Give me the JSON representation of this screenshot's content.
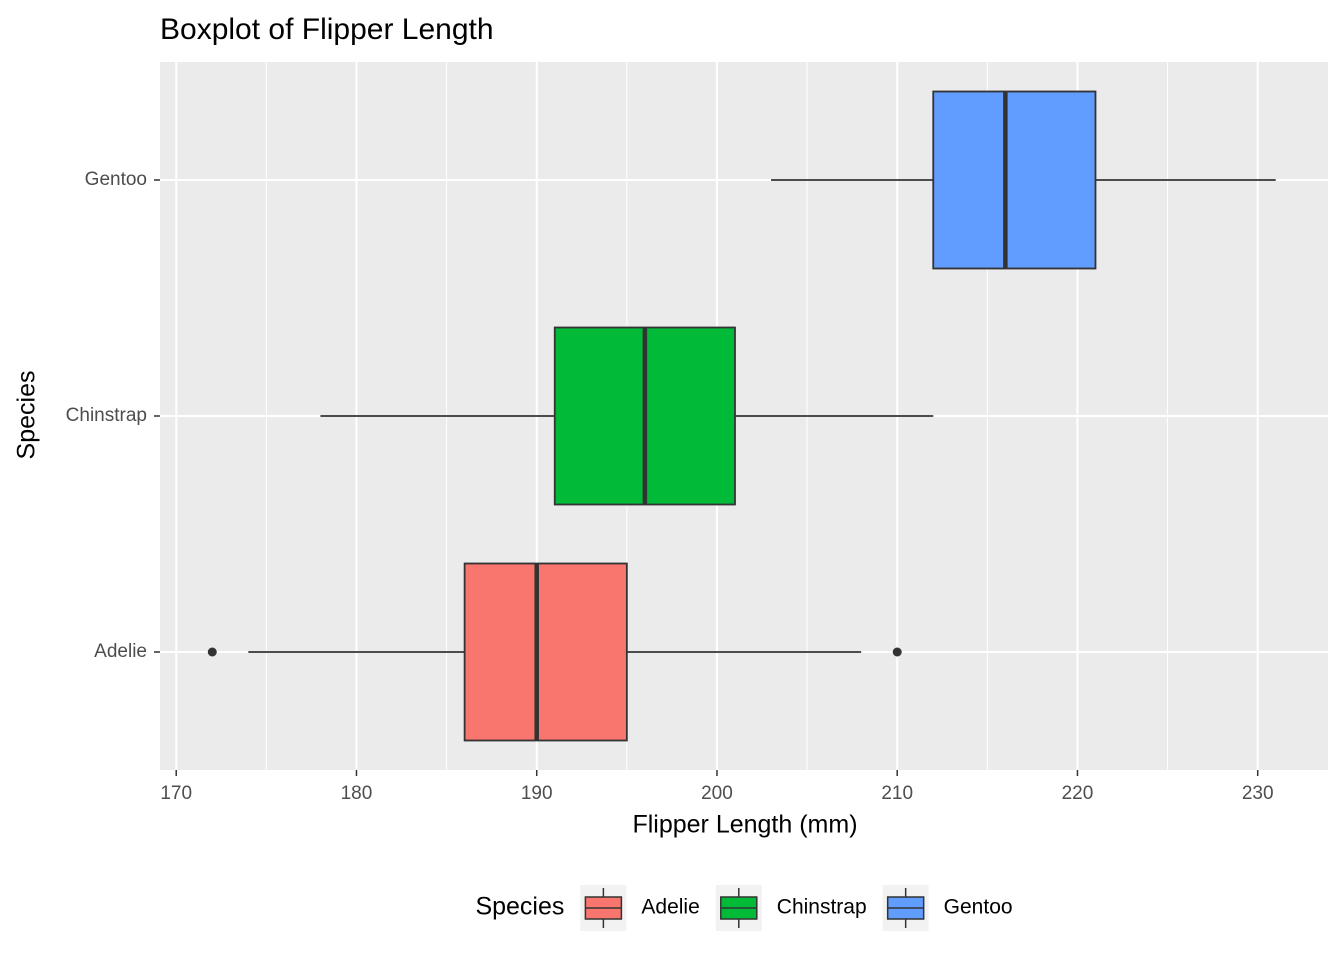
{
  "chart_data": {
    "type": "boxplot",
    "orientation": "horizontal",
    "title": "Boxplot of Flipper Length",
    "x_label": "Flipper Length (mm)",
    "y_label": "Species",
    "categories": [
      "Adelie",
      "Chinstrap",
      "Gentoo"
    ],
    "series": [
      {
        "name": "Adelie",
        "color": "#F8766D",
        "min": 174,
        "q1": 186,
        "median": 190,
        "q3": 195,
        "max": 208,
        "outliers": [
          172,
          210
        ]
      },
      {
        "name": "Chinstrap",
        "color": "#00BA38",
        "min": 178,
        "q1": 191,
        "median": 196,
        "q3": 201,
        "max": 212,
        "outliers": []
      },
      {
        "name": "Gentoo",
        "color": "#619CFF",
        "min": 203,
        "q1": 212,
        "median": 216,
        "q3": 221,
        "max": 231,
        "outliers": []
      }
    ],
    "xlim": [
      169.1,
      233.9
    ],
    "xticks": [
      170,
      180,
      190,
      200,
      210,
      220,
      230
    ],
    "x_minor_ticks": [
      175,
      185,
      195,
      205,
      215,
      225
    ],
    "grid": true,
    "legend_title": "Species",
    "legend_position": "bottom"
  }
}
